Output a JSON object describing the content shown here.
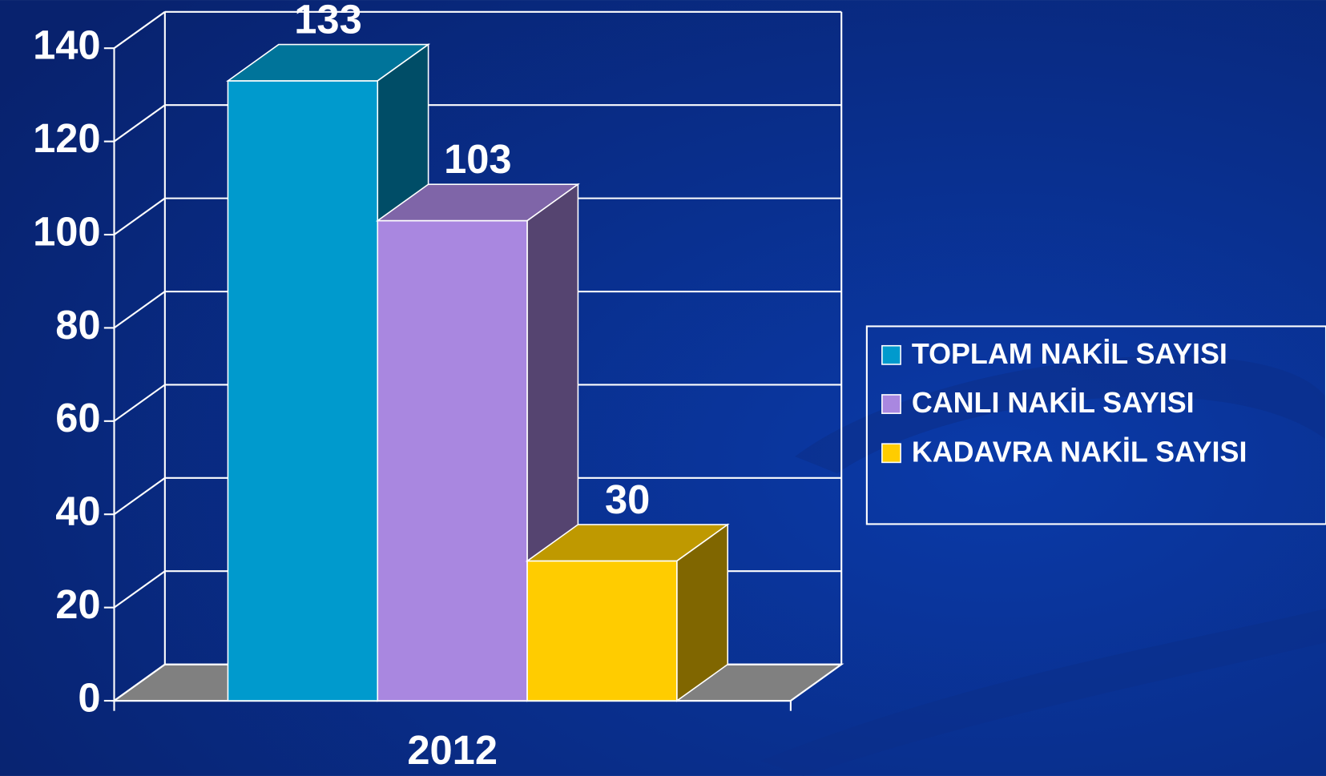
{
  "chart_data": {
    "type": "bar3d",
    "categories": [
      "2012"
    ],
    "series": [
      {
        "name": "TOPLAM NAKİL SAYISI",
        "color": "#009acd",
        "values": [
          133
        ]
      },
      {
        "name": "CANLI NAKİL SAYISI",
        "color": "#a987e0",
        "values": [
          103
        ]
      },
      {
        "name": "KADAVRA NAKİL SAYISI",
        "color": "#ffcc00",
        "values": [
          30
        ]
      }
    ],
    "ylim": [
      0,
      140
    ],
    "yticks": [
      0,
      20,
      40,
      60,
      80,
      100,
      120,
      140
    ],
    "grid": true,
    "legend": "right"
  }
}
